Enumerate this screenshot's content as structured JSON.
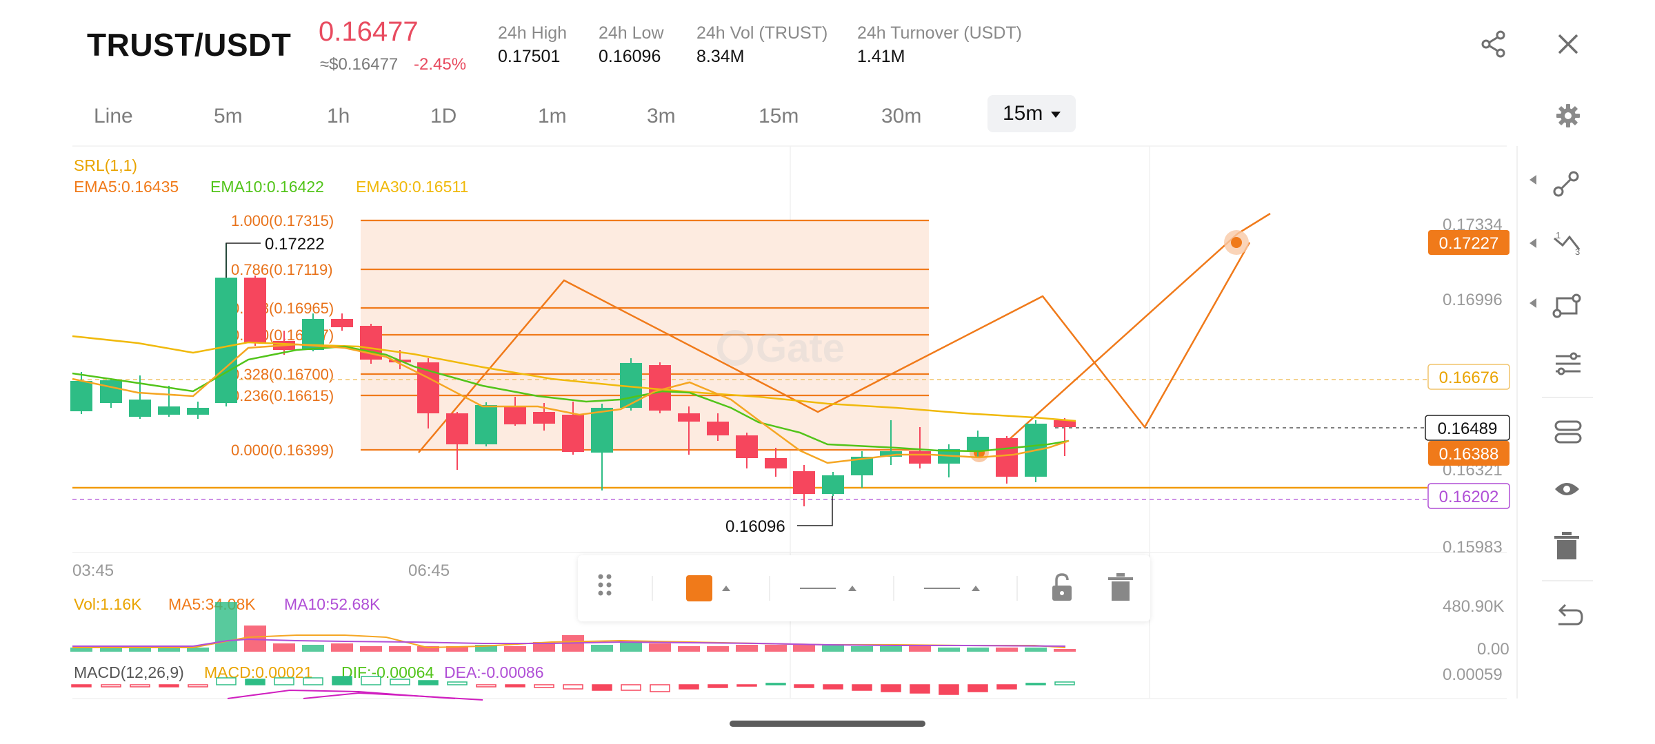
{
  "header": {
    "pair": "TRUST/USDT",
    "price": "0.16477",
    "approx": "≈$0.16477",
    "change": "-2.45%",
    "stats": [
      {
        "label": "24h High",
        "value": "0.17501"
      },
      {
        "label": "24h Low",
        "value": "0.16096"
      },
      {
        "label": "24h Vol (TRUST)",
        "value": "8.34M"
      },
      {
        "label": "24h Turnover (USDT)",
        "value": "1.41M"
      }
    ],
    "icons": [
      "share-icon",
      "close-icon"
    ]
  },
  "tabs": [
    {
      "label": "Line"
    },
    {
      "label": "5m"
    },
    {
      "label": "1h"
    },
    {
      "label": "1D"
    },
    {
      "label": "1m"
    },
    {
      "label": "3m"
    },
    {
      "label": "15m"
    },
    {
      "label": "30m"
    }
  ],
  "active_tab": "15m",
  "chart": {
    "indicator_srl": "SRL(1,1)",
    "ema5": "EMA5:0.16435",
    "ema10": "EMA10:0.16422",
    "ema30": "EMA30:0.16511",
    "watermark": "Gate",
    "fib_levels": [
      {
        "label": "1.000(0.17315)"
      },
      {
        "label": "0.786(0.17119)"
      },
      {
        "label": "0.618(0.16965)"
      },
      {
        "label": "0.500(0.16857)"
      },
      {
        "label": "0.328(0.16700)"
      },
      {
        "label": "0.236(0.16615)"
      },
      {
        "label": "0.000(0.16399)"
      }
    ],
    "high_marker": "0.17222",
    "low_marker": "0.16096",
    "y_axis": [
      "0.17334",
      "0.16996",
      "0.16321",
      "0.15983"
    ],
    "price_tags": {
      "orange_top": "0.17227",
      "yellow": "0.16676",
      "current": "0.16489",
      "orange": "0.16388",
      "purple": "0.16202"
    },
    "x_axis": [
      "03:45",
      "06:45"
    ],
    "colors": {
      "up": "#2ebd85",
      "down": "#f6465d",
      "fib": "#f07a1a",
      "ema5": "#f5a623",
      "ema10": "#52c41a",
      "ema30": "#f0b90b",
      "purple": "#b04fd6"
    }
  },
  "volume": {
    "vol": "Vol:1.16K",
    "ma5": "MA5:34.08K",
    "ma10": "MA10:52.68K",
    "axis_top": "480.90K",
    "axis_bottom": "0.00"
  },
  "macd": {
    "label": "MACD(12,26,9)",
    "macd": "MACD:0.00021",
    "dif": "DIF:-0.00064",
    "dea": "DEA:-0.00086",
    "axis": "0.00059"
  },
  "draw_toolbar": {
    "color": "#f07a1a",
    "icons": [
      "drag-handle-icon",
      "color-picker",
      "line-style-icon",
      "line-width-icon",
      "unlock-icon",
      "trash-icon"
    ]
  },
  "side_tools": [
    "trendline-tool-icon",
    "fib-tool-icon",
    "shape-tool-icon",
    "indicator-settings-icon",
    "compare-icon",
    "visibility-icon",
    "delete-drawings-icon",
    "undo-icon"
  ]
}
